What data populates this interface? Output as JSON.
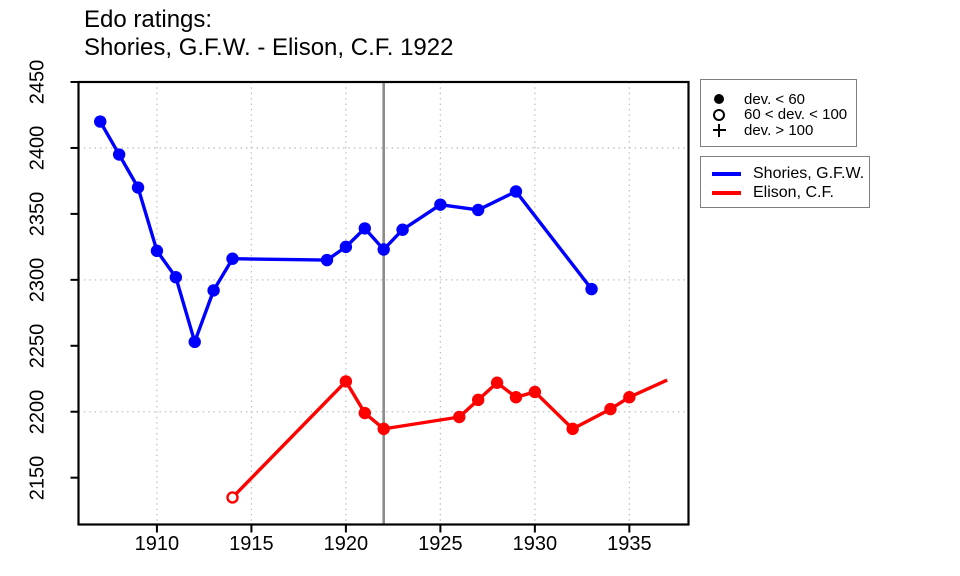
{
  "chart_data": {
    "type": "line",
    "title": "Edo ratings:",
    "subtitle": "Shories, G.F.W. - Elison, C.F. 1922",
    "xlabel": "",
    "ylabel": "",
    "xlim": [
      1905.85,
      1938.13
    ],
    "ylim": [
      2114.5,
      2450
    ],
    "x_ticks": [
      1910,
      1915,
      1920,
      1925,
      1930,
      1935
    ],
    "y_ticks": [
      2150,
      2200,
      2250,
      2300,
      2350,
      2400,
      2450
    ],
    "grid_x": [
      1910,
      1915,
      1920,
      1925,
      1930,
      1935
    ],
    "grid_y": [
      2200,
      2300,
      2400
    ],
    "grid_style": "dotted",
    "grid_color": "#bdbdbd",
    "event_line_year": 1922,
    "event_line_color": "#8c8c8c",
    "legend_position": "right-outside",
    "series": [
      {
        "name": "Shories, G.F.W.",
        "color": "#0000ff",
        "points": [
          {
            "x": 1907,
            "y": 2420,
            "marker": "filled"
          },
          {
            "x": 1908,
            "y": 2395,
            "marker": "filled"
          },
          {
            "x": 1909,
            "y": 2370,
            "marker": "filled"
          },
          {
            "x": 1910,
            "y": 2322,
            "marker": "filled"
          },
          {
            "x": 1911,
            "y": 2302,
            "marker": "filled"
          },
          {
            "x": 1912,
            "y": 2253,
            "marker": "filled"
          },
          {
            "x": 1913,
            "y": 2292,
            "marker": "filled"
          },
          {
            "x": 1914,
            "y": 2316,
            "marker": "filled"
          },
          {
            "x": 1919,
            "y": 2315,
            "marker": "filled"
          },
          {
            "x": 1920,
            "y": 2325,
            "marker": "filled"
          },
          {
            "x": 1921,
            "y": 2339,
            "marker": "filled"
          },
          {
            "x": 1922,
            "y": 2323,
            "marker": "filled"
          },
          {
            "x": 1923,
            "y": 2338,
            "marker": "filled"
          },
          {
            "x": 1925,
            "y": 2357,
            "marker": "filled"
          },
          {
            "x": 1927,
            "y": 2353,
            "marker": "filled"
          },
          {
            "x": 1929,
            "y": 2367,
            "marker": "filled"
          },
          {
            "x": 1933,
            "y": 2293,
            "marker": "filled"
          }
        ]
      },
      {
        "name": "Elison, C.F.",
        "color": "#ff0000",
        "points": [
          {
            "x": 1914,
            "y": 2135,
            "marker": "open"
          },
          {
            "x": 1920,
            "y": 2223,
            "marker": "filled"
          },
          {
            "x": 1921,
            "y": 2199,
            "marker": "filled"
          },
          {
            "x": 1922,
            "y": 2187,
            "marker": "filled"
          },
          {
            "x": 1926,
            "y": 2196,
            "marker": "filled"
          },
          {
            "x": 1927,
            "y": 2209,
            "marker": "filled"
          },
          {
            "x": 1928,
            "y": 2222,
            "marker": "filled"
          },
          {
            "x": 1929,
            "y": 2211,
            "marker": "filled"
          },
          {
            "x": 1930,
            "y": 2215,
            "marker": "filled"
          },
          {
            "x": 1932,
            "y": 2187,
            "marker": "filled"
          },
          {
            "x": 1934,
            "y": 2202,
            "marker": "filled"
          },
          {
            "x": 1935,
            "y": 2211,
            "marker": "filled"
          },
          {
            "x": 1937,
            "y": 2224,
            "marker": "none"
          }
        ]
      }
    ],
    "legend_markers": [
      {
        "symbol": "filled-circle",
        "label": "dev. < 60"
      },
      {
        "symbol": "open-circle",
        "label": "60 < dev. < 100"
      },
      {
        "symbol": "plus",
        "label": "dev. > 100"
      }
    ]
  }
}
